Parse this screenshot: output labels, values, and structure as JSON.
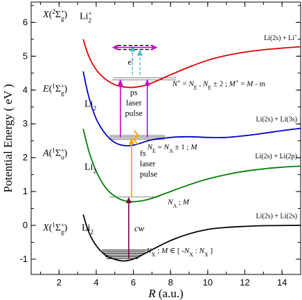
{
  "chart_data": {
    "type": "line",
    "xlabel_main": "R",
    "xlabel_unit": "(a.u.)",
    "ylabel": "Potential Energy  ( eV )",
    "xlim": [
      0.5,
      15
    ],
    "ylim": [
      -1.45,
      6.6
    ],
    "xticks": [
      "2",
      "4",
      "6",
      "8",
      "10",
      "12",
      "14"
    ],
    "yticks": [
      "-1",
      "0",
      "1",
      "2",
      "3",
      "4",
      "5",
      "6"
    ],
    "curves": [
      {
        "id": "X",
        "state_main": "X(",
        "state_sup": "1",
        "state_sym": "Σ",
        "state_sym_sup": "+",
        "state_sym_sub": "g",
        "molecule": "Li",
        "molecule_sub": "2",
        "asymptote": "Li(2s) + Li(2s)",
        "color": "#000000",
        "points": [
          [
            3.3,
            0.32
          ],
          [
            3.6,
            -0.2
          ],
          [
            4.0,
            -0.6
          ],
          [
            4.5,
            -0.88
          ],
          [
            5.0,
            -1.0
          ],
          [
            5.4,
            -1.05
          ],
          [
            5.8,
            -1.03
          ],
          [
            6.2,
            -0.95
          ],
          [
            7.0,
            -0.72
          ],
          [
            8.0,
            -0.45
          ],
          [
            9.0,
            -0.25
          ],
          [
            10.0,
            -0.12
          ],
          [
            11.0,
            -0.06
          ],
          [
            12.0,
            -0.03
          ],
          [
            13.0,
            -0.01
          ],
          [
            15.0,
            0.0
          ]
        ]
      },
      {
        "id": "A",
        "state_main": "A(",
        "state_sup": "1",
        "state_sym": "Σ",
        "state_sym_sup": "+",
        "state_sym_sub": "u",
        "molecule": "Li",
        "molecule_sub": "2",
        "asymptote": "Li(2s) + Li(2p)",
        "color": "#008000",
        "points": [
          [
            3.3,
            2.85
          ],
          [
            3.6,
            2.2
          ],
          [
            4.0,
            1.6
          ],
          [
            4.5,
            1.12
          ],
          [
            5.0,
            0.86
          ],
          [
            5.5,
            0.73
          ],
          [
            6.0,
            0.7
          ],
          [
            6.5,
            0.73
          ],
          [
            7.0,
            0.8
          ],
          [
            8.0,
            1.0
          ],
          [
            9.0,
            1.2
          ],
          [
            10.0,
            1.37
          ],
          [
            11.0,
            1.5
          ],
          [
            12.0,
            1.6
          ],
          [
            13.0,
            1.67
          ],
          [
            14.0,
            1.72
          ],
          [
            15.0,
            1.75
          ]
        ]
      },
      {
        "id": "E",
        "state_main": "E(",
        "state_sup": "1",
        "state_sym": "Σ",
        "state_sym_sup": "+",
        "state_sym_sub": "g",
        "molecule": "Li",
        "molecule_sub": "2",
        "asymptote": "Li(2s) + Li(3s)",
        "color": "#0000cc",
        "points": [
          [
            3.3,
            4.55
          ],
          [
            3.6,
            3.8
          ],
          [
            4.0,
            3.15
          ],
          [
            4.5,
            2.7
          ],
          [
            5.0,
            2.45
          ],
          [
            5.5,
            2.36
          ],
          [
            6.0,
            2.37
          ],
          [
            6.5,
            2.45
          ],
          [
            7.0,
            2.53
          ],
          [
            8.0,
            2.6
          ],
          [
            9.0,
            2.62
          ],
          [
            10.0,
            2.6
          ],
          [
            11.0,
            2.6
          ],
          [
            12.0,
            2.65
          ],
          [
            13.0,
            2.72
          ],
          [
            14.0,
            2.8
          ],
          [
            15.0,
            2.87
          ]
        ]
      },
      {
        "id": "ion",
        "state_main": "X(",
        "state_sup": "2",
        "state_sym": "Σ",
        "state_sym_sup": "+",
        "state_sym_sub": "g",
        "molecule": "Li",
        "molecule_sub": "2",
        "molecule_sup": "+",
        "asymptote": "Li(2s) + Li",
        "asymptote_sup": "+",
        "color": "#e00000",
        "points": [
          [
            3.3,
            5.5
          ],
          [
            3.6,
            5.0
          ],
          [
            4.0,
            4.6
          ],
          [
            4.5,
            4.32
          ],
          [
            5.0,
            4.16
          ],
          [
            5.5,
            4.09
          ],
          [
            6.0,
            4.08
          ],
          [
            6.5,
            4.12
          ],
          [
            7.0,
            4.21
          ],
          [
            8.0,
            4.45
          ],
          [
            9.0,
            4.68
          ],
          [
            10.0,
            4.88
          ],
          [
            11.0,
            5.02
          ],
          [
            12.0,
            5.12
          ],
          [
            13.0,
            5.19
          ],
          [
            14.0,
            5.24
          ],
          [
            15.0,
            5.28
          ]
        ]
      }
    ],
    "levels": [
      {
        "color": "#000000",
        "xmin": 4.55,
        "xmax": 6.25,
        "y": -0.98
      },
      {
        "color": "#000000",
        "xmin": 4.5,
        "xmax": 6.35,
        "y": -0.93
      },
      {
        "color": "#000000",
        "xmin": 4.45,
        "xmax": 6.45,
        "y": -0.88
      },
      {
        "color": "#000000",
        "xmin": 4.4,
        "xmax": 6.55,
        "y": -0.83
      },
      {
        "color": "#000000",
        "xmin": 4.35,
        "xmax": 6.65,
        "y": -0.78
      },
      {
        "color": "#000000",
        "xmin": 4.3,
        "xmax": 6.75,
        "y": -0.73
      },
      {
        "color": "#808080",
        "xmin": 4.7,
        "xmax": 7.35,
        "y": 0.84
      },
      {
        "color": "#808080",
        "xmin": 4.7,
        "xmax": 7.7,
        "y": 2.54
      },
      {
        "color": "#808080",
        "xmin": 4.7,
        "xmax": 7.7,
        "y": 2.58
      },
      {
        "color": "#808080",
        "xmin": 4.7,
        "xmax": 7.7,
        "y": 2.62
      },
      {
        "color": "#808080",
        "xmin": 4.7,
        "xmax": 7.7,
        "y": 2.66
      },
      {
        "color": "#808080",
        "xmin": 4.85,
        "xmax": 8.3,
        "y": 4.3
      },
      {
        "color": "#808080",
        "xmin": 4.9,
        "xmax": 8.3,
        "y": 4.36
      }
    ],
    "transitions": [
      {
        "label": "cw",
        "color": "#800040",
        "x": 5.75,
        "y1": -0.98,
        "y2": 0.84
      },
      {
        "label_lines": [
          "fs",
          "laser",
          "pulse"
        ],
        "color": "#ffa500",
        "x": 5.9,
        "y1": 0.84,
        "y2": 2.6
      },
      {
        "label_lines": [
          "ps",
          "laser",
          "pulse"
        ],
        "color": "#cc00cc",
        "x1": 5.3,
        "x2": 6.75,
        "y1": 2.6,
        "y2": 4.33
      }
    ],
    "annotations": {
      "nx": [
        "N",
        "X",
        " ; M ∈ [ -N",
        "X",
        " : N",
        "X",
        " ]"
      ],
      "na": [
        "N",
        "A",
        " ; M"
      ],
      "ne": [
        "N",
        "E",
        " = N",
        "A",
        " ± 1 ; M"
      ],
      "nplus": [
        "N",
        "+",
        " = N",
        "E",
        " , N",
        "E",
        " ± 2 ; M",
        "+",
        " = M - m"
      ],
      "electron": "e",
      "electron_sup": "-"
    }
  }
}
